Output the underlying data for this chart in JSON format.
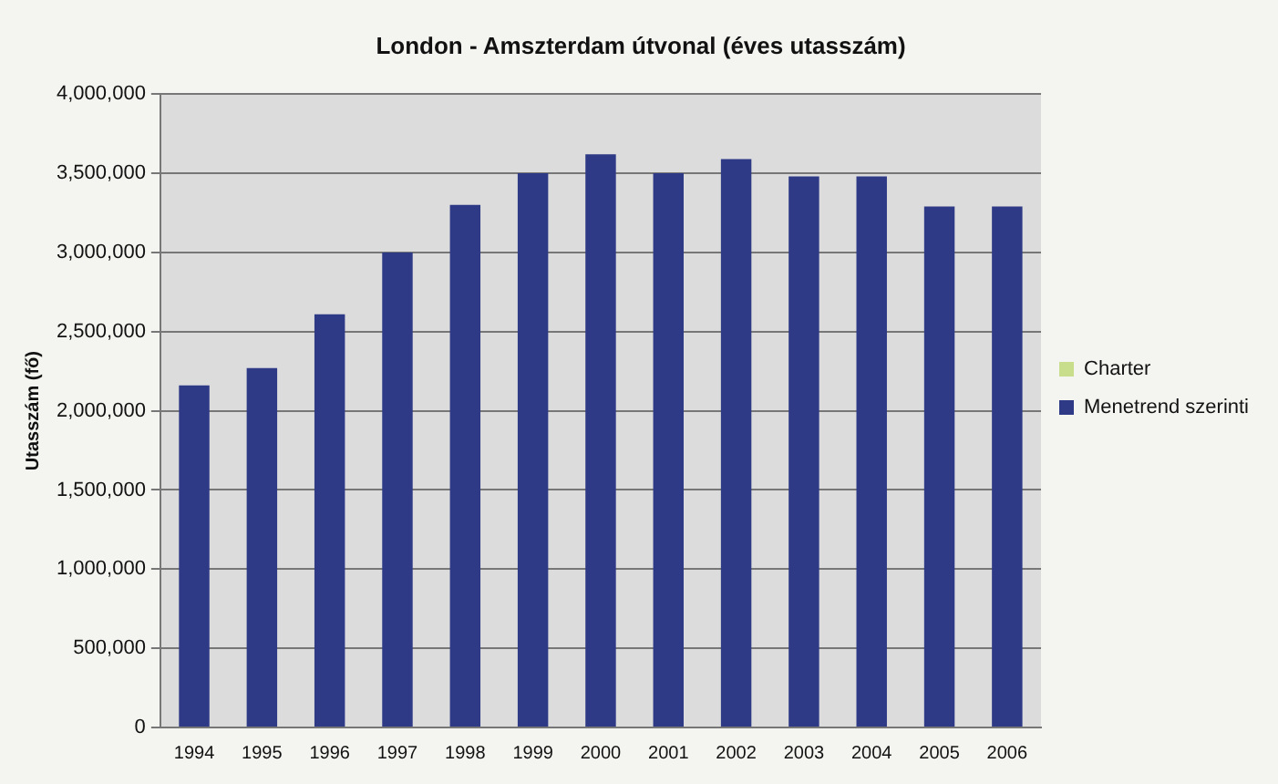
{
  "chart_data": {
    "type": "bar",
    "title": "London - Amszterdam útvonal (éves utasszám)",
    "ylabel": "Utasszám (fő)",
    "categories": [
      "1994",
      "1995",
      "1996",
      "1997",
      "1998",
      "1999",
      "2000",
      "2001",
      "2002",
      "2003",
      "2004",
      "2005",
      "2006"
    ],
    "series": [
      {
        "name": "Menetrend szerinti",
        "color": "#2f3a86",
        "values": [
          2160000,
          2270000,
          2610000,
          3000000,
          3300000,
          3500000,
          3620000,
          3500000,
          3590000,
          3480000,
          3480000,
          3290000,
          3290000
        ]
      },
      {
        "name": "Charter",
        "color": "#c9de8c",
        "values": [
          0,
          0,
          0,
          0,
          0,
          0,
          0,
          0,
          0,
          0,
          0,
          0,
          0
        ]
      }
    ],
    "stacked": true,
    "ylim": [
      0,
      4000000
    ],
    "yticks": [
      0,
      {
        "value": 500000,
        "label": "500,000"
      },
      {
        "value": 1000000,
        "label": "1,000,000"
      },
      {
        "value": 1500000,
        "label": "1,500,000"
      },
      {
        "value": 2000000,
        "label": "2,000,000"
      },
      {
        "value": 2500000,
        "label": "2,500,000"
      },
      {
        "value": 3000000,
        "label": "3,000,000"
      },
      {
        "value": 3500000,
        "label": "3,500,000"
      },
      {
        "value": 4000000,
        "label": "4,000,000"
      }
    ],
    "grid": "y",
    "legend": "right"
  }
}
